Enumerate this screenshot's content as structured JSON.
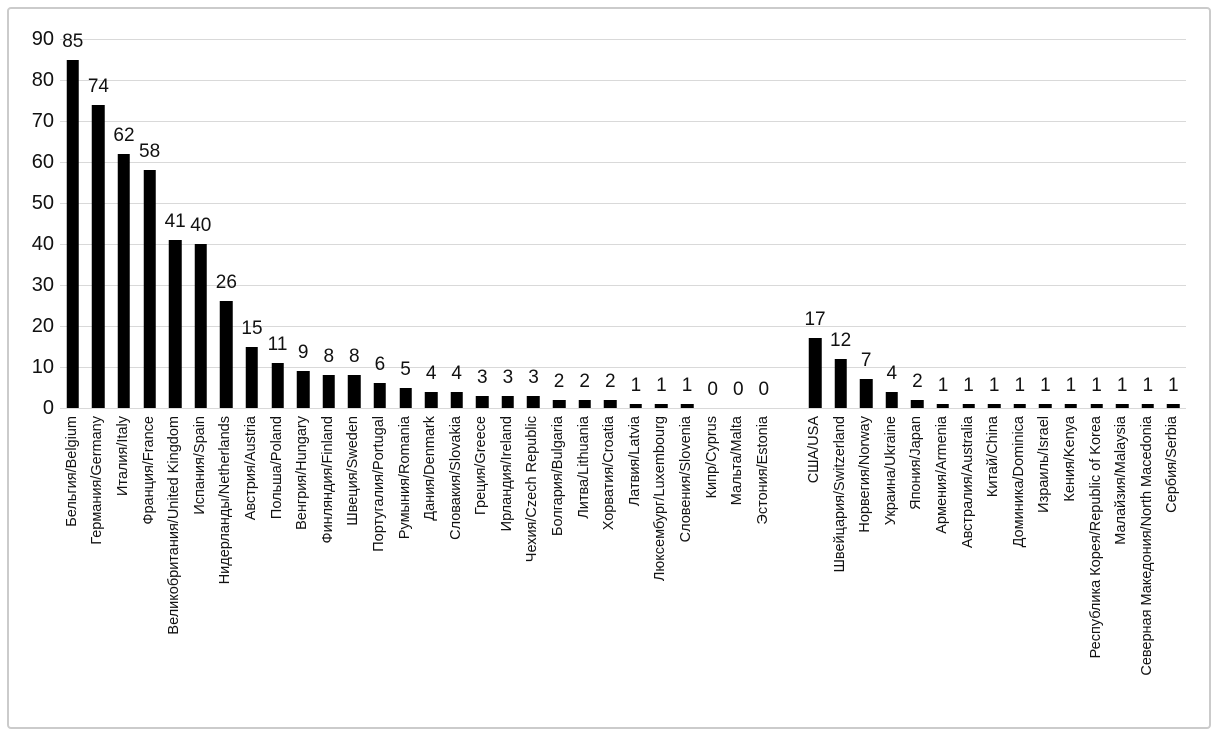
{
  "chart_data": {
    "type": "bar",
    "title": "",
    "xlabel": "",
    "ylabel": "",
    "ylim": [
      0,
      90
    ],
    "y_ticks": [
      0,
      10,
      20,
      30,
      40,
      50,
      60,
      70,
      80,
      90
    ],
    "grid": true,
    "legend": false,
    "bar_color": "#000000",
    "gridline_color": "#d9d9d9",
    "frame_border_color": "#cbcbcb",
    "background": "#ffffff",
    "gap_after_index": 27,
    "categories": [
      "Бельгия/Belgium",
      "Германия/Germany",
      "Италия/Italy",
      "Франция/France",
      "Великобритания/United Kingdom",
      "Испания/Spain",
      "Нидерланды/Netherlands",
      "Австрия/Austria",
      "Польша/Poland",
      "Венгрия/Hungary",
      "Финляндия/Finland",
      "Швеция/Sweden",
      "Португалия/Portugal",
      "Румыния/Romania",
      "Дания/Denmark",
      "Словакия/Slovakia",
      "Греция/Greece",
      "Ирландия/Ireland",
      "Чехия/Czech Republic",
      "Болгария/Bulgaria",
      "Литва/Lithuania",
      "Хорватия/Croatia",
      "Латвия/Latvia",
      "Люксембург/Luxembourg",
      "Словения/Slovenia",
      "Кипр/Cyprus",
      "Мальта/Malta",
      "Эстония/Estonia",
      "США/USA",
      "Швейцария/Switzerland",
      "Норвегия/Norway",
      "Украина/Ukraine",
      "Япония/Japan",
      "Армения/Armenia",
      "Австралия/Australia",
      "Китай/China",
      "Доминика/Dominica",
      "Израиль/Israel",
      "Кения/Kenya",
      "Республика Корея/Republic of Korea",
      "Малайзия/Malaysia",
      "Северная Македония/North Macedonia",
      "Сербия/Serbia"
    ],
    "values": [
      85,
      74,
      62,
      58,
      41,
      40,
      26,
      15,
      11,
      9,
      8,
      8,
      6,
      5,
      4,
      4,
      3,
      3,
      3,
      2,
      2,
      2,
      1,
      1,
      1,
      0,
      0,
      0,
      17,
      12,
      7,
      4,
      2,
      1,
      1,
      1,
      1,
      1,
      1,
      1,
      1,
      1,
      1
    ]
  }
}
